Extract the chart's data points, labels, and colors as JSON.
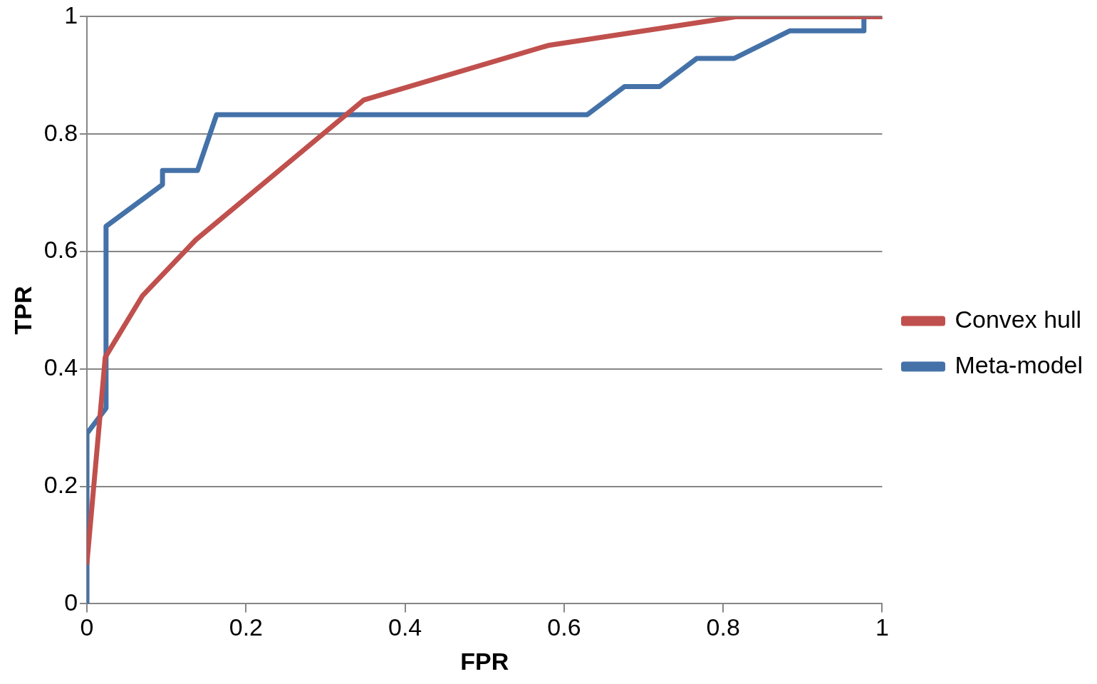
{
  "chart_data": {
    "type": "line",
    "xlabel": "FPR",
    "ylabel": "TPR",
    "xlim": [
      0,
      1
    ],
    "ylim": [
      0,
      1
    ],
    "xticks": [
      0,
      0.2,
      0.4,
      0.6,
      0.8,
      1
    ],
    "yticks": [
      0,
      0.2,
      0.4,
      0.6,
      0.8,
      1
    ],
    "grid": "y",
    "legend": "right",
    "marker": "none",
    "series": [
      {
        "name": "Convex hull",
        "color": "#c0504d",
        "x": [
          0,
          0.023,
          0.07,
          0.137,
          0.348,
          0.58,
          0.817,
          1
        ],
        "values": [
          0.07,
          0.42,
          0.525,
          0.62,
          0.858,
          0.951,
          1,
          1
        ]
      },
      {
        "name": "Meta-model",
        "color": "#4472a8",
        "x": [
          0,
          0,
          0.024,
          0.024,
          0.095,
          0.095,
          0.139,
          0.163,
          0.629,
          0.676,
          0.72,
          0.767,
          0.814,
          0.884,
          0.977,
          0.977,
          1
        ],
        "values": [
          0,
          0.29,
          0.333,
          0.643,
          0.714,
          0.738,
          0.738,
          0.833,
          0.833,
          0.881,
          0.881,
          0.929,
          0.929,
          0.976,
          0.976,
          1,
          1
        ]
      }
    ]
  }
}
